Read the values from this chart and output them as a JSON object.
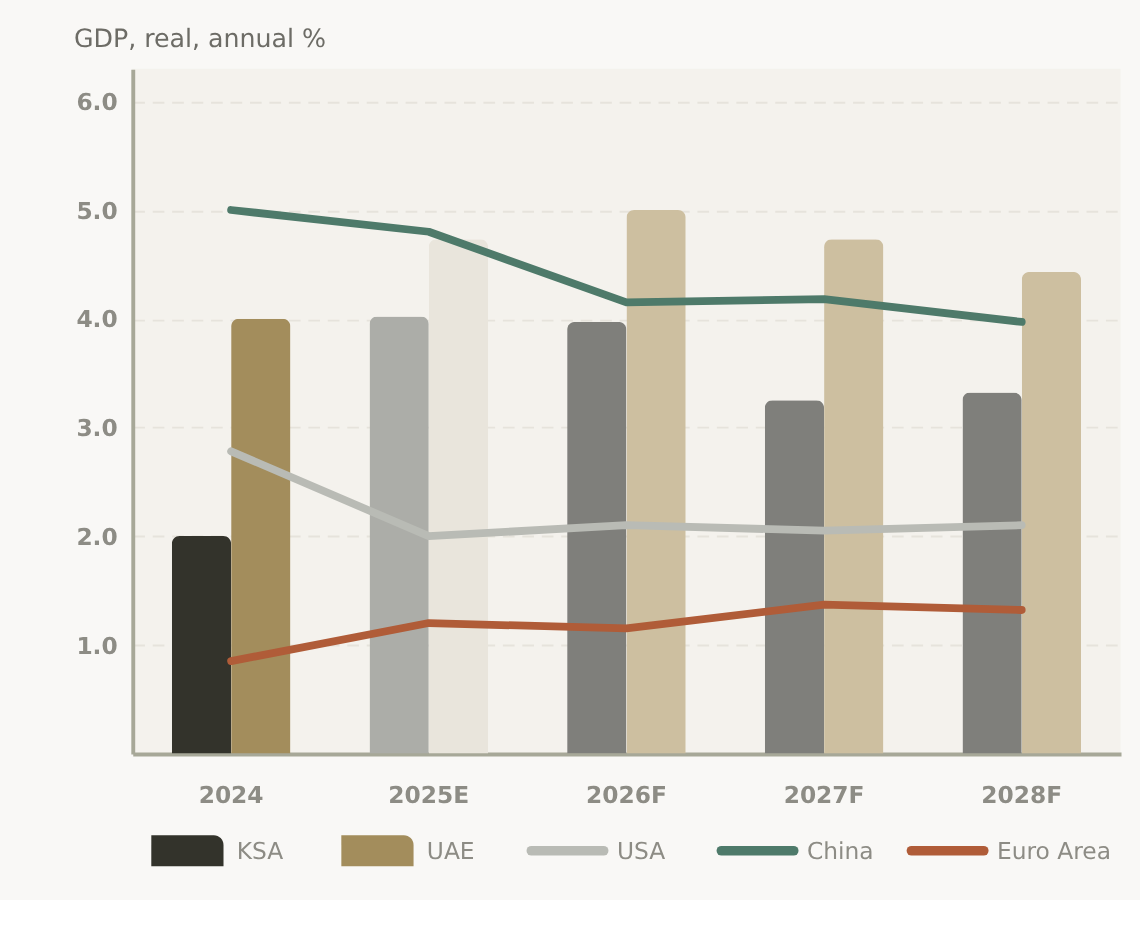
{
  "chart_data": {
    "type": "bar",
    "title": "GDP, real, annual %",
    "categories": [
      "2024",
      "2025E",
      "2026F",
      "2027F",
      "2028F"
    ],
    "series": [
      {
        "name": "KSA",
        "color": "#33332b",
        "colors": [
          "#33332b",
          "#acada8",
          "#7f7f7b",
          "#7f7f7b",
          "#7f7f7b"
        ],
        "values": [
          2.0,
          4.02,
          3.97,
          3.25,
          3.32
        ]
      },
      {
        "name": "UAE",
        "color": "#a38d5c",
        "colors": [
          "#a38d5c",
          "#e9e5dc",
          "#cdbfa0",
          "#cdbfa0",
          "#cdbfa0"
        ],
        "values": [
          4.0,
          4.73,
          5.0,
          4.73,
          4.43
        ]
      },
      {
        "name": "USA",
        "type": "line",
        "color": "#b9bbb5",
        "values": [
          2.78,
          2.0,
          2.1,
          2.05,
          2.1
        ]
      },
      {
        "name": "China",
        "type": "line",
        "color": "#4e7a6a",
        "values": [
          5.0,
          4.8,
          4.15,
          4.18,
          3.97
        ]
      },
      {
        "name": "Euro Area",
        "type": "line",
        "color": "#b05c38",
        "values": [
          0.85,
          1.2,
          1.15,
          1.37,
          1.32
        ]
      }
    ],
    "ylim": [
      0,
      6.3
    ],
    "yticks": [
      {
        "value": 1,
        "label": "1.0"
      },
      {
        "value": 2,
        "label": "2.0"
      },
      {
        "value": 3,
        "label": "3.0"
      },
      {
        "value": 4,
        "label": "4.0"
      },
      {
        "value": 5,
        "label": "5.0"
      },
      {
        "value": 6,
        "label": "6.0"
      }
    ],
    "grid": "y",
    "legend": "bottom",
    "line_style": "solid",
    "marker": "none"
  }
}
